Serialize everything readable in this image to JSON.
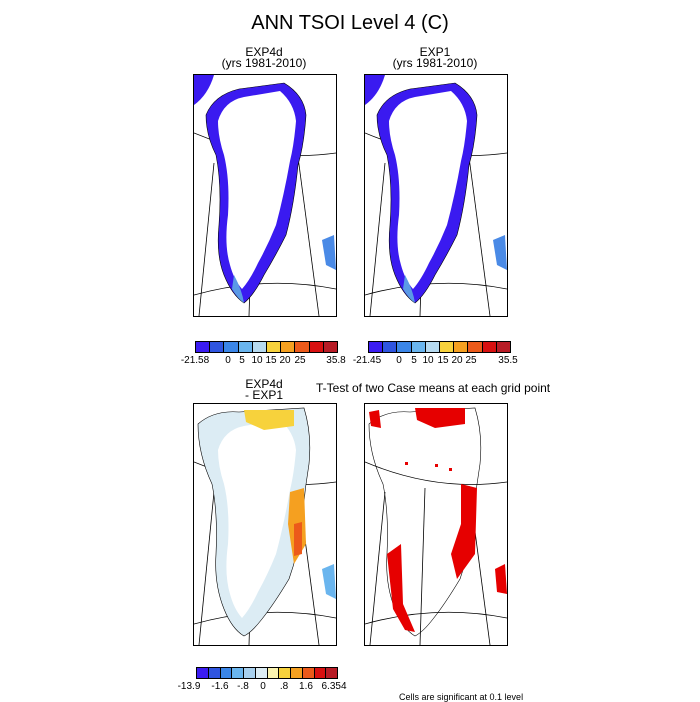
{
  "title": "ANN TSOI Level 4 (C)",
  "panels": {
    "top_left": {
      "title": "EXP4d",
      "subtitle": "(yrs 1981-2010)"
    },
    "top_right": {
      "title": "EXP1",
      "subtitle": "(yrs 1981-2010)"
    },
    "bottom_left": {
      "title": "EXP4d",
      "subtitle": "- EXP1"
    },
    "bottom_right": {
      "title": "T-Test of two Case means at each grid point"
    }
  },
  "footnote": "Cells are significant at 0.1 level",
  "colors": {
    "abs_scale": [
      "#3b1cf2",
      "#2f55e0",
      "#3b86e8",
      "#6ab5ee",
      "#b6daf0",
      "#f7d23c",
      "#f5a020",
      "#ec5a1a",
      "#d81010",
      "#b81c26"
    ],
    "diff_scale": [
      "#3b1cf2",
      "#2f55e0",
      "#3b86e8",
      "#6ab5ee",
      "#a8d0ee",
      "#dcecf4",
      "#fbf4b0",
      "#f7d23c",
      "#f5a020",
      "#ec5a1a",
      "#d81010",
      "#b81c26"
    ],
    "significant": "#e60000"
  },
  "chart_data": [
    {
      "type": "heatmap",
      "title": "EXP4d",
      "subtitle": "(yrs 1981-2010)",
      "colorbar_labels": [
        "-21.58",
        "0",
        "5",
        "10",
        "15",
        "20",
        "25",
        "35.8"
      ],
      "range": [
        -21.58,
        35.8
      ]
    },
    {
      "type": "heatmap",
      "title": "EXP1",
      "subtitle": "(yrs 1981-2010)",
      "colorbar_labels": [
        "-21.45",
        "0",
        "5",
        "10",
        "15",
        "20",
        "25",
        "35.5"
      ],
      "range": [
        -21.45,
        35.5
      ]
    },
    {
      "type": "heatmap",
      "title": "EXP4d",
      "subtitle": "- EXP1",
      "colorbar_labels": [
        "-13.9",
        "-1.6",
        "-.8",
        "0",
        ".8",
        "1.6",
        "6.354"
      ],
      "range": [
        -13.9,
        6.354
      ]
    },
    {
      "type": "heatmap",
      "title": "T-Test of two Case means at each grid point",
      "note": "Cells are significant at 0.1 level"
    }
  ]
}
